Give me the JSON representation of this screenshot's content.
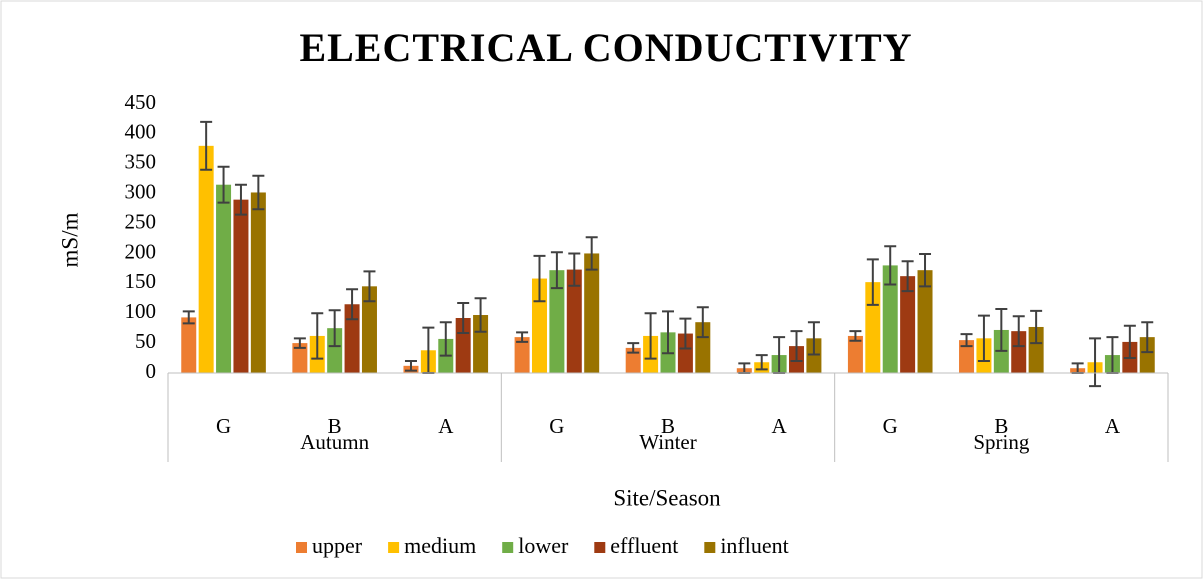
{
  "chart_data": {
    "type": "bar",
    "title": "ELECTRICAL CONDUCTIVITY",
    "y_label": "mS/m",
    "x_label": "Site/Season",
    "categories": [
      "G",
      "B",
      "A",
      "G",
      "B",
      "A",
      "G",
      "B",
      "A"
    ],
    "category_groups": [
      "Autumn",
      "Winter",
      "Spring"
    ],
    "ylim": [
      0,
      450
    ],
    "yticks": [
      0,
      50,
      100,
      150,
      200,
      250,
      300,
      350,
      400,
      450
    ],
    "legend": "bottom",
    "series": [
      {
        "name": "upper",
        "color": "#ed7d31",
        "values": [
          93,
          50,
          12,
          60,
          42,
          8,
          62,
          55,
          8
        ],
        "errors": [
          10,
          8,
          8,
          8,
          8,
          8,
          8,
          10,
          8
        ]
      },
      {
        "name": "medium",
        "color": "#ffc000",
        "values": [
          380,
          62,
          38,
          158,
          62,
          18,
          152,
          58,
          18
        ],
        "errors": [
          40,
          38,
          38,
          38,
          38,
          12,
          38,
          38,
          40
        ]
      },
      {
        "name": "lower",
        "color": "#70ad47",
        "values": [
          315,
          75,
          57,
          172,
          68,
          30,
          180,
          72,
          30
        ],
        "errors": [
          30,
          30,
          28,
          30,
          35,
          30,
          32,
          35,
          30
        ]
      },
      {
        "name": "effluent",
        "color": "#9e3a12",
        "values": [
          290,
          115,
          92,
          173,
          66,
          45,
          162,
          70,
          52
        ],
        "errors": [
          25,
          25,
          25,
          27,
          25,
          25,
          25,
          25,
          27
        ]
      },
      {
        "name": "influent",
        "color": "#997300",
        "values": [
          302,
          145,
          97,
          200,
          85,
          58,
          172,
          77,
          60
        ],
        "errors": [
          28,
          25,
          28,
          27,
          25,
          27,
          27,
          27,
          25
        ]
      }
    ]
  }
}
